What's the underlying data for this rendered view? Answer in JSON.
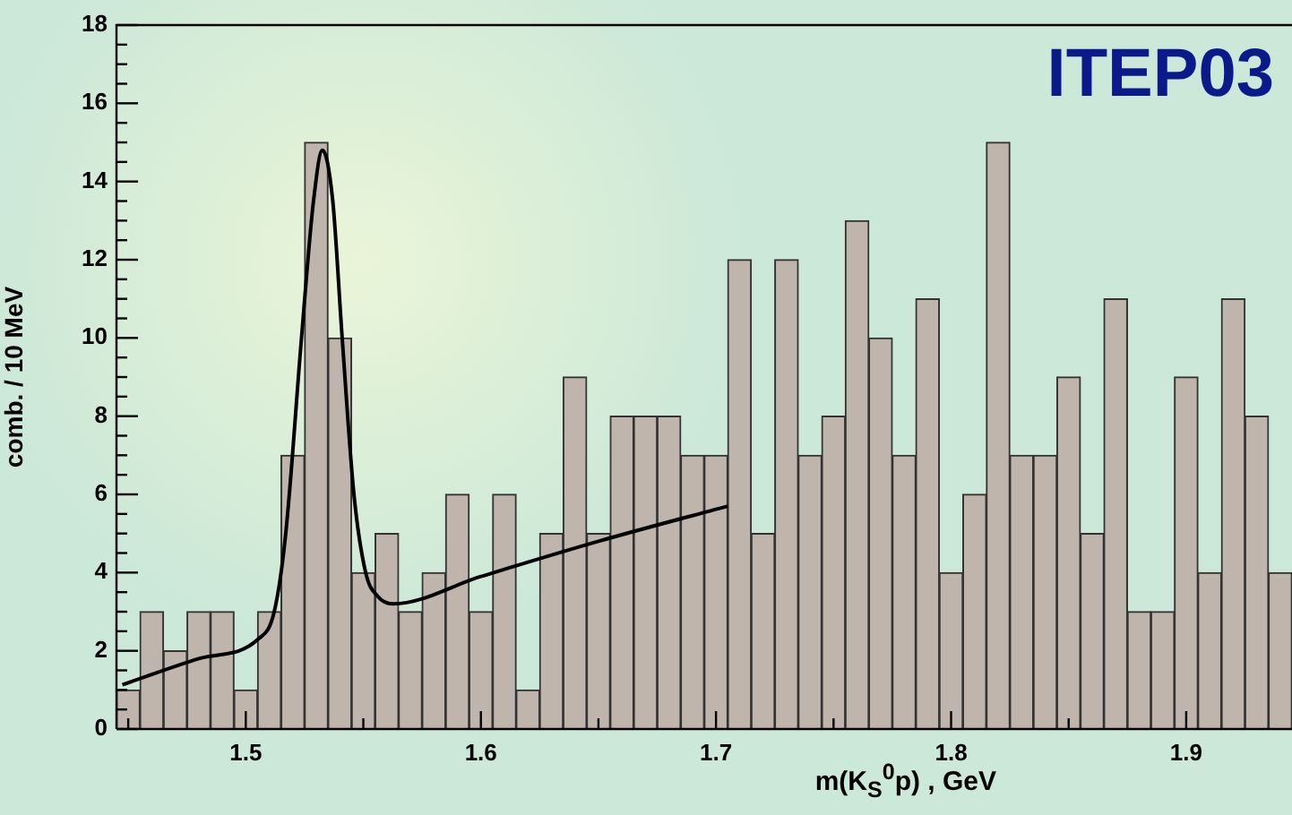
{
  "chart_data": {
    "type": "histogram",
    "xlabel": "m(K$_{S}$$^{0}$p) , GeV",
    "ylabel": "comb. / 10 MeV",
    "annotations": [
      "ITEP03"
    ],
    "bins": [
      1.445,
      1.455,
      1.465,
      1.475,
      1.485,
      1.495,
      1.505,
      1.515,
      1.525,
      1.535,
      1.545,
      1.555,
      1.565,
      1.575,
      1.585,
      1.595,
      1.605,
      1.615,
      1.625,
      1.635,
      1.645,
      1.655,
      1.665,
      1.675,
      1.685,
      1.695,
      1.705,
      1.715,
      1.725,
      1.735,
      1.745,
      1.755,
      1.765,
      1.775,
      1.785,
      1.795,
      1.805,
      1.815,
      1.825,
      1.835,
      1.845,
      1.855,
      1.865,
      1.875,
      1.885,
      1.895,
      1.905,
      1.915,
      1.925,
      1.935,
      1.945
    ],
    "values": [
      1,
      3,
      2,
      3,
      3,
      1,
      3,
      7,
      15,
      10,
      4,
      5,
      3,
      4,
      6,
      3,
      6,
      1,
      5,
      9,
      5,
      8,
      8,
      8,
      7,
      7,
      12,
      5,
      12,
      7,
      8,
      13,
      10,
      7,
      11,
      4,
      6,
      15,
      7,
      7,
      9,
      5,
      11,
      3,
      3,
      9,
      4,
      11,
      8,
      4
    ],
    "color": "#c0b5ac",
    "series": [
      {
        "type": "line",
        "color": "#000000",
        "x": [
          1.4475,
          1.48,
          1.5053,
          1.5121,
          1.517,
          1.5237,
          1.5288,
          1.5326,
          1.537,
          1.541,
          1.546,
          1.551,
          1.556,
          1.5626,
          1.6,
          1.65,
          1.705
        ],
        "values": [
          1.13,
          1.8,
          2.3,
          3.0,
          5,
          10,
          13.5,
          14.8,
          13.5,
          10,
          6,
          4,
          3.4,
          3.2,
          3.9,
          4.8,
          5.7
        ]
      }
    ],
    "xlim": [
      1.445,
      1.945
    ],
    "xticks": [
      {
        "value": 1.45,
        "label": null
      },
      1.5,
      {
        "value": 1.55,
        "label": null
      },
      1.6,
      {
        "value": 1.65,
        "label": null
      },
      1.7,
      {
        "value": 1.75,
        "label": null
      },
      1.8,
      {
        "value": 1.85,
        "label": null
      },
      1.9
    ],
    "ylim": [
      0,
      18
    ],
    "yticks": [
      0,
      {
        "value": 0.5,
        "label": null
      },
      {
        "value": 1,
        "label": null
      },
      {
        "value": 1.5,
        "label": null
      },
      2,
      {
        "value": 2.5,
        "label": null
      },
      {
        "value": 3,
        "label": null
      },
      {
        "value": 3.5,
        "label": null
      },
      4,
      {
        "value": 4.5,
        "label": null
      },
      {
        "value": 5,
        "label": null
      },
      {
        "value": 5.5,
        "label": null
      },
      6,
      {
        "value": 6.5,
        "label": null
      },
      {
        "value": 7,
        "label": null
      },
      {
        "value": 7.5,
        "label": null
      },
      8,
      {
        "value": 8.5,
        "label": null
      },
      {
        "value": 9,
        "label": null
      },
      {
        "value": 9.5,
        "label": null
      },
      10,
      {
        "value": 10.5,
        "label": null
      },
      {
        "value": 11,
        "label": null
      },
      {
        "value": 11.5,
        "label": null
      },
      12,
      {
        "value": 12.5,
        "label": null
      },
      {
        "value": 13,
        "label": null
      },
      {
        "value": 13.5,
        "label": null
      },
      14,
      {
        "value": 14.5,
        "label": null
      },
      {
        "value": 15,
        "label": null
      },
      {
        "value": 15.5,
        "label": null
      },
      16,
      {
        "value": 16.5,
        "label": null
      },
      {
        "value": 17,
        "label": null
      },
      {
        "value": 17.5,
        "label": null
      },
      18
    ],
    "legend": false,
    "grid": false,
    "marker": "none",
    "line_style": "solid"
  }
}
